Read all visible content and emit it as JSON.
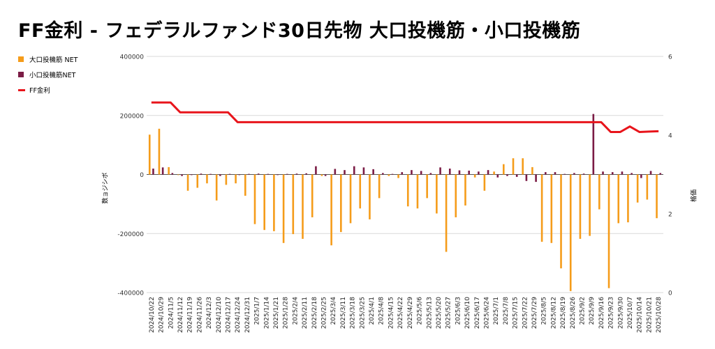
{
  "chart_data": {
    "type": "bar",
    "title": "FF金利 - フェデラルファンド30日先物 大口投機筋・小口投機筋",
    "ylabel": "数ョジシボ",
    "ylabel_right": "格価",
    "ylim": [
      -400000,
      400000
    ],
    "ylim_right": [
      0,
      6
    ],
    "yticks": [
      400000,
      200000,
      0,
      -200000,
      -400000
    ],
    "yticks_labels": [
      "400000",
      "200000",
      "0",
      "-200000",
      "-400000"
    ],
    "yticks_right": [
      6,
      4,
      2,
      0
    ],
    "yticks_right_labels": [
      "6",
      "4",
      "2",
      "0"
    ],
    "grid": true,
    "legend_position": "top-left",
    "categories": [
      "2024/10/22",
      "2024/10/29",
      "2024/11/5",
      "2024/11/12",
      "2024/11/19",
      "2024/11/26",
      "2024/12/3",
      "2024/12/10",
      "2024/12/17",
      "2024/12/24",
      "2024/12/31",
      "2025/1/7",
      "2025/1/14",
      "2025/1/21",
      "2025/1/28",
      "2025/2/4",
      "2025/2/11",
      "2025/2/18",
      "2025/2/25",
      "2025/3/4",
      "2025/3/11",
      "2025/3/18",
      "2025/3/25",
      "2025/4/1",
      "2025/4/8",
      "2025/4/15",
      "2025/4/22",
      "2025/4/29",
      "2025/5/6",
      "2025/5/13",
      "2025/5/20",
      "2025/5/27",
      "2025/6/3",
      "2025/6/10",
      "2025/6/17",
      "2025/6/24",
      "2025/7/1",
      "2025/7/8",
      "2025/7/15",
      "2025/7/22",
      "2025/7/29",
      "2025/8/5",
      "2025/8/12",
      "2025/8/19",
      "2025/8/26",
      "2025/9/2",
      "2025/9/9",
      "2025/9/16",
      "2025/9/23",
      "2025/9/30",
      "2025/10/7",
      "2025/10/14",
      "2025/10/21",
      "2025/10/28"
    ],
    "series": [
      {
        "name": "大口投機筋 NET",
        "type": "bar",
        "color": "#f59c1a",
        "axis": "left",
        "values": [
          135000,
          155000,
          25000,
          -2000,
          -55000,
          -45000,
          -30000,
          -88000,
          -35000,
          -30000,
          -72000,
          -168000,
          -188000,
          -192000,
          -232000,
          -202000,
          -218000,
          -145000,
          -5000,
          -240000,
          -195000,
          -165000,
          -115000,
          -152000,
          -80000,
          -5000,
          -12000,
          -108000,
          -115000,
          -80000,
          -132000,
          -262000,
          -145000,
          -105000,
          -10000,
          -55000,
          10000,
          35000,
          55000,
          55000,
          25000,
          -228000,
          -232000,
          -318000,
          -395000,
          -218000,
          -208000,
          -118000,
          -385000,
          -165000,
          -162000,
          -95000,
          -85000,
          -148000
        ]
      },
      {
        "name": "小口投機筋NET",
        "type": "bar",
        "color": "#7b1c45",
        "axis": "left",
        "values": [
          20000,
          24000,
          5000,
          -5000,
          -2000,
          3000,
          2000,
          -5000,
          2000,
          -2000,
          2000,
          3000,
          2000,
          -2000,
          2000,
          3000,
          4000,
          28000,
          -5000,
          19000,
          15000,
          28000,
          24000,
          18000,
          5000,
          2000,
          8000,
          15000,
          12000,
          5000,
          24000,
          20000,
          14000,
          13000,
          10000,
          15000,
          -10000,
          -5000,
          -8000,
          -22000,
          -25000,
          8000,
          8000,
          2000,
          5000,
          3000,
          205000,
          10000,
          8000,
          10000,
          5000,
          -12000,
          12000,
          5000
        ]
      },
      {
        "name": "FF金利",
        "type": "line",
        "color": "#e8141b",
        "axis": "right",
        "values": [
          4.83,
          4.83,
          4.83,
          4.58,
          4.58,
          4.58,
          4.58,
          4.58,
          4.58,
          4.33,
          4.33,
          4.33,
          4.33,
          4.33,
          4.33,
          4.33,
          4.33,
          4.33,
          4.33,
          4.33,
          4.33,
          4.33,
          4.33,
          4.33,
          4.33,
          4.33,
          4.33,
          4.33,
          4.33,
          4.33,
          4.33,
          4.33,
          4.33,
          4.33,
          4.33,
          4.33,
          4.33,
          4.33,
          4.33,
          4.33,
          4.33,
          4.33,
          4.33,
          4.33,
          4.33,
          4.33,
          4.33,
          4.33,
          4.08,
          4.08,
          4.22,
          4.08,
          4.09,
          4.1
        ]
      }
    ]
  }
}
